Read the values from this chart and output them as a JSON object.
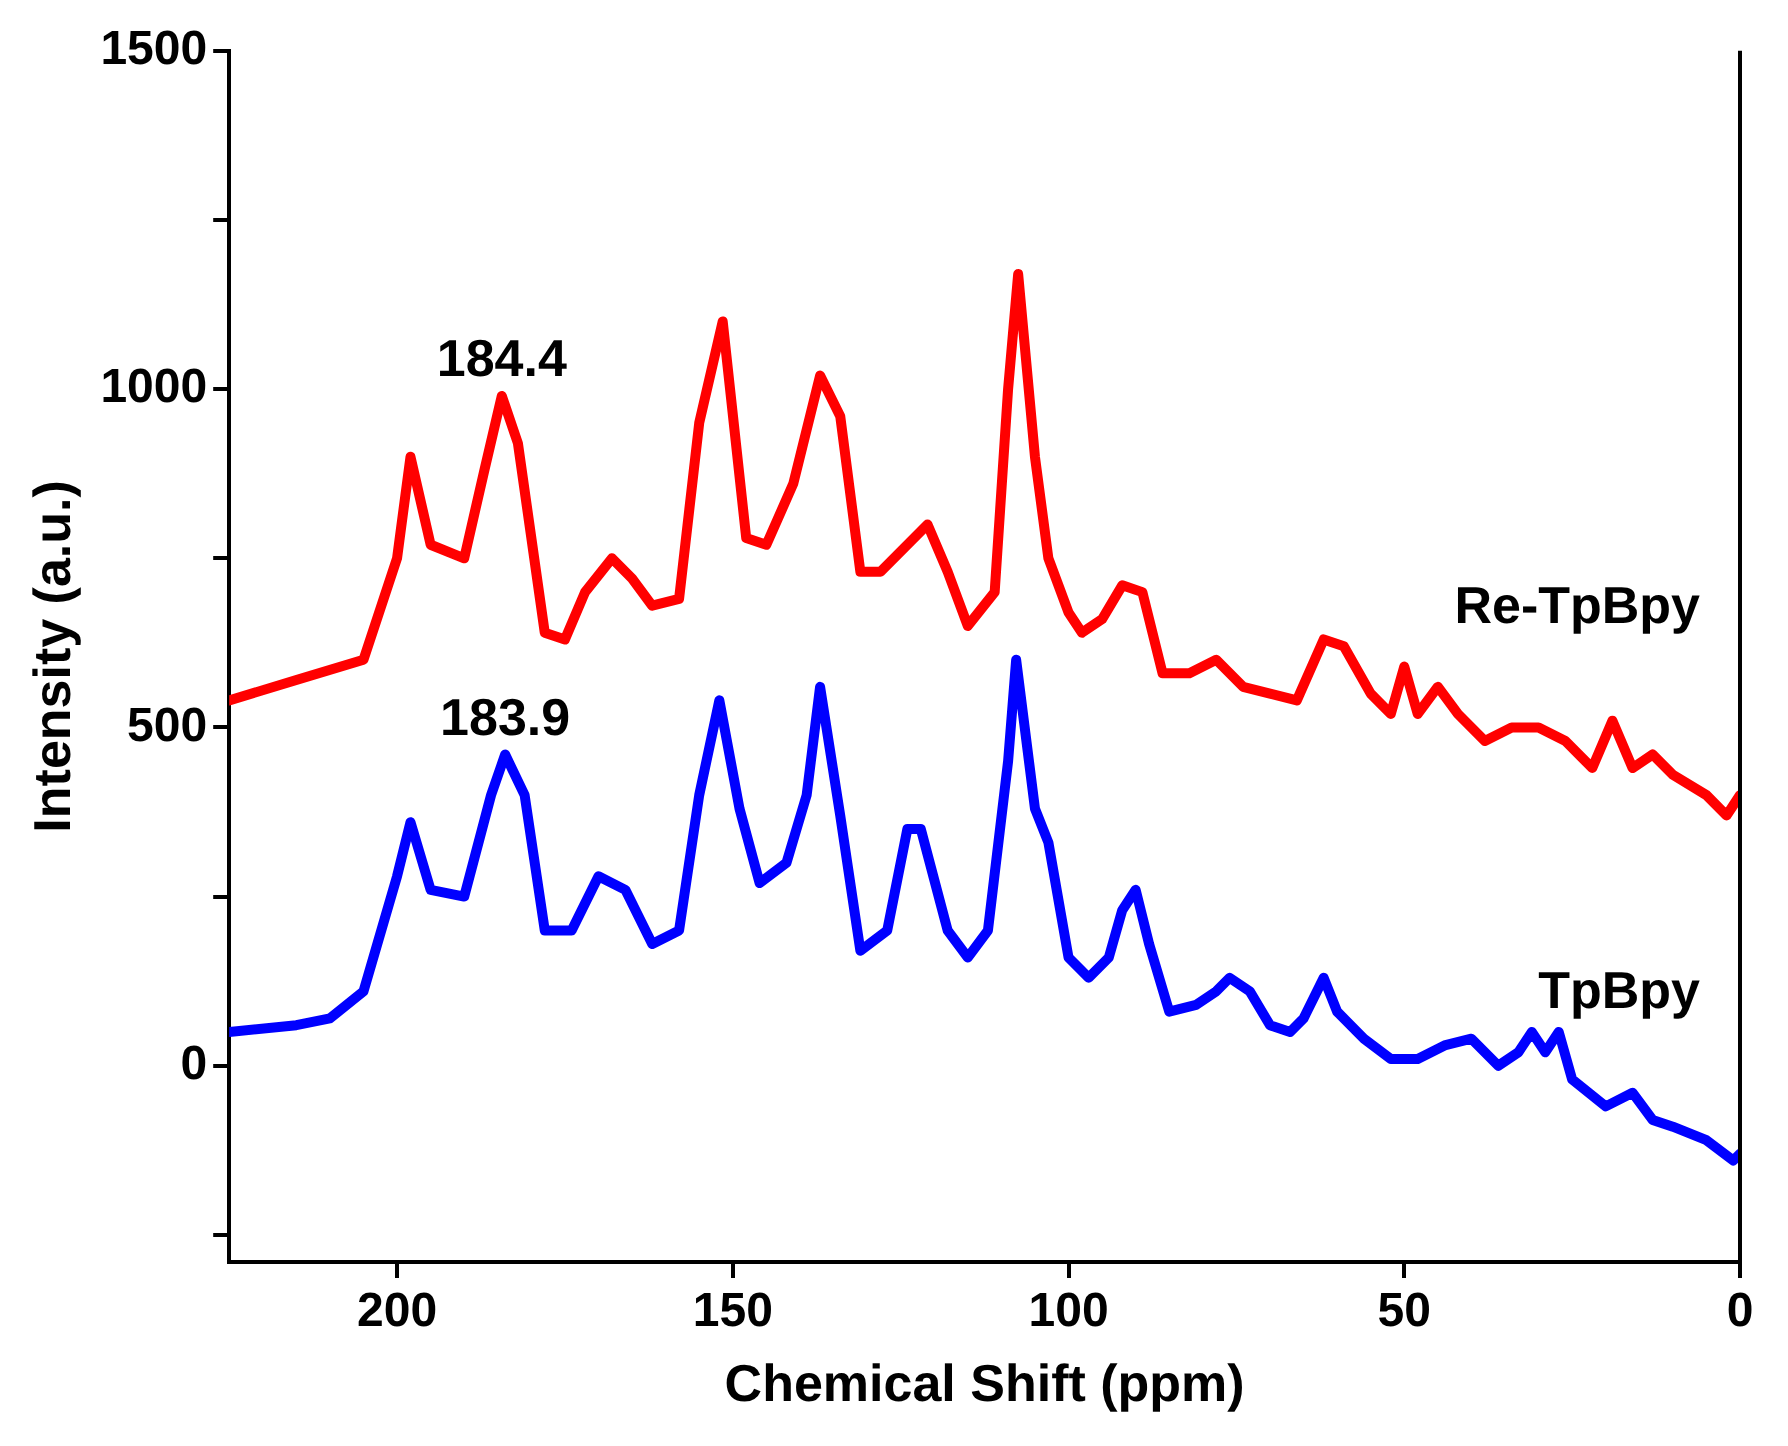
{
  "chart_data": {
    "type": "line",
    "xlabel": "Chemical Shift (ppm)",
    "ylabel": "Intensity (a.u.)",
    "xlim": [
      225,
      0
    ],
    "xticks": [
      200,
      150,
      100,
      50,
      0
    ],
    "ylim": [
      -290,
      1500
    ],
    "yticks": [
      {
        "value": -250,
        "label": null
      },
      0,
      {
        "value": 250,
        "label": null
      },
      500,
      {
        "value": 750,
        "label": null
      },
      1000,
      {
        "value": 1250,
        "label": null
      },
      1500
    ],
    "grid": false,
    "legend": false,
    "marker": "none",
    "line_style": "solid",
    "annotations": [
      {
        "text": "184.4",
        "x": 184.4,
        "y": 990
      },
      {
        "text": "183.9",
        "x": 183.9,
        "y": 460
      }
    ],
    "series": [
      {
        "name": "Re-TpBpy",
        "color": "#ff0000",
        "x": [
          225,
          215,
          205,
          200,
          198,
          195,
          190,
          187,
          184.4,
          182,
          178,
          175,
          172,
          168,
          165,
          162,
          158,
          155,
          151.5,
          148,
          145,
          141,
          137,
          134,
          131,
          128,
          125,
          121,
          118,
          115,
          111,
          109,
          107.5,
          105,
          103,
          100,
          98,
          95,
          92,
          89,
          86,
          82,
          78,
          74,
          70,
          66,
          62,
          59,
          55,
          52,
          50,
          48,
          45,
          42,
          38,
          34,
          30,
          26,
          22,
          19,
          16,
          13,
          10,
          5,
          2,
          0
        ],
        "values": [
          540,
          570,
          600,
          750,
          900,
          770,
          750,
          880,
          990,
          920,
          640,
          630,
          700,
          750,
          720,
          680,
          690,
          950,
          1100,
          780,
          770,
          860,
          1020,
          960,
          730,
          730,
          760,
          800,
          730,
          650,
          700,
          1000,
          1170,
          900,
          750,
          670,
          640,
          660,
          710,
          700,
          580,
          580,
          600,
          560,
          550,
          540,
          630,
          620,
          550,
          520,
          590,
          520,
          560,
          520,
          480,
          500,
          500,
          480,
          440,
          510,
          440,
          460,
          430,
          400,
          370,
          400
        ]
      },
      {
        "name": "TpBpy",
        "color": "#0000ff",
        "x": [
          225,
          215,
          210,
          205,
          200,
          198,
          195,
          190,
          186,
          183.9,
          181,
          178,
          174,
          170,
          166,
          162,
          158,
          155,
          152,
          149,
          146,
          142,
          139,
          137,
          134,
          131,
          127,
          124,
          122,
          118,
          115,
          112,
          109,
          107.8,
          105,
          103,
          100,
          97,
          94,
          92,
          90,
          88,
          85,
          81,
          78,
          76,
          73,
          70,
          67,
          65,
          62,
          60,
          56,
          52,
          48,
          44,
          40,
          36,
          33,
          31,
          29,
          27,
          25,
          20,
          16,
          13,
          10,
          5,
          1,
          0
        ],
        "values": [
          50,
          60,
          70,
          110,
          280,
          360,
          260,
          250,
          400,
          460,
          400,
          200,
          200,
          280,
          260,
          180,
          200,
          400,
          540,
          380,
          270,
          300,
          400,
          560,
          370,
          170,
          200,
          350,
          350,
          200,
          160,
          200,
          450,
          600,
          380,
          330,
          160,
          130,
          160,
          230,
          260,
          180,
          80,
          90,
          110,
          130,
          110,
          60,
          50,
          70,
          130,
          80,
          40,
          10,
          10,
          30,
          40,
          0,
          20,
          50,
          20,
          50,
          -20,
          -60,
          -40,
          -80,
          -90,
          -110,
          -140,
          -130
        ]
      }
    ]
  }
}
